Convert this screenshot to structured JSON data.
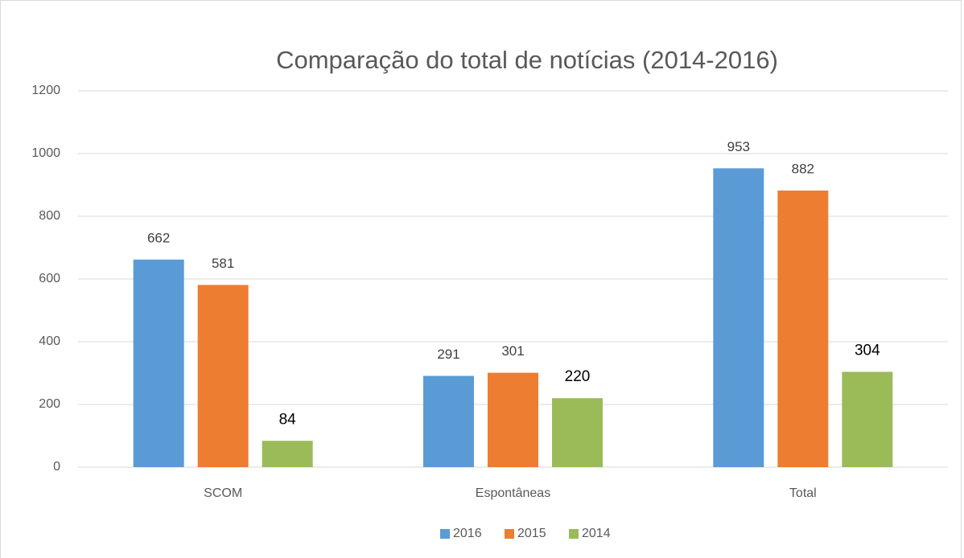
{
  "chart_data": {
    "type": "bar",
    "title": "Comparação do total de notícias (2014-2016)",
    "categories": [
      "SCOM",
      "Espontâneas",
      "Total"
    ],
    "series": [
      {
        "name": "2016",
        "color": "#5b9bd5",
        "values": [
          662,
          291,
          953
        ]
      },
      {
        "name": "2015",
        "color": "#ed7d31",
        "values": [
          581,
          301,
          882
        ]
      },
      {
        "name": "2014",
        "color": "#9bbb59",
        "values": [
          84,
          220,
          304
        ]
      }
    ],
    "ylim": [
      0,
      1200
    ],
    "yticks": [
      0,
      200,
      400,
      600,
      800,
      1000,
      1200
    ],
    "grid": true,
    "legend": "bottom"
  }
}
